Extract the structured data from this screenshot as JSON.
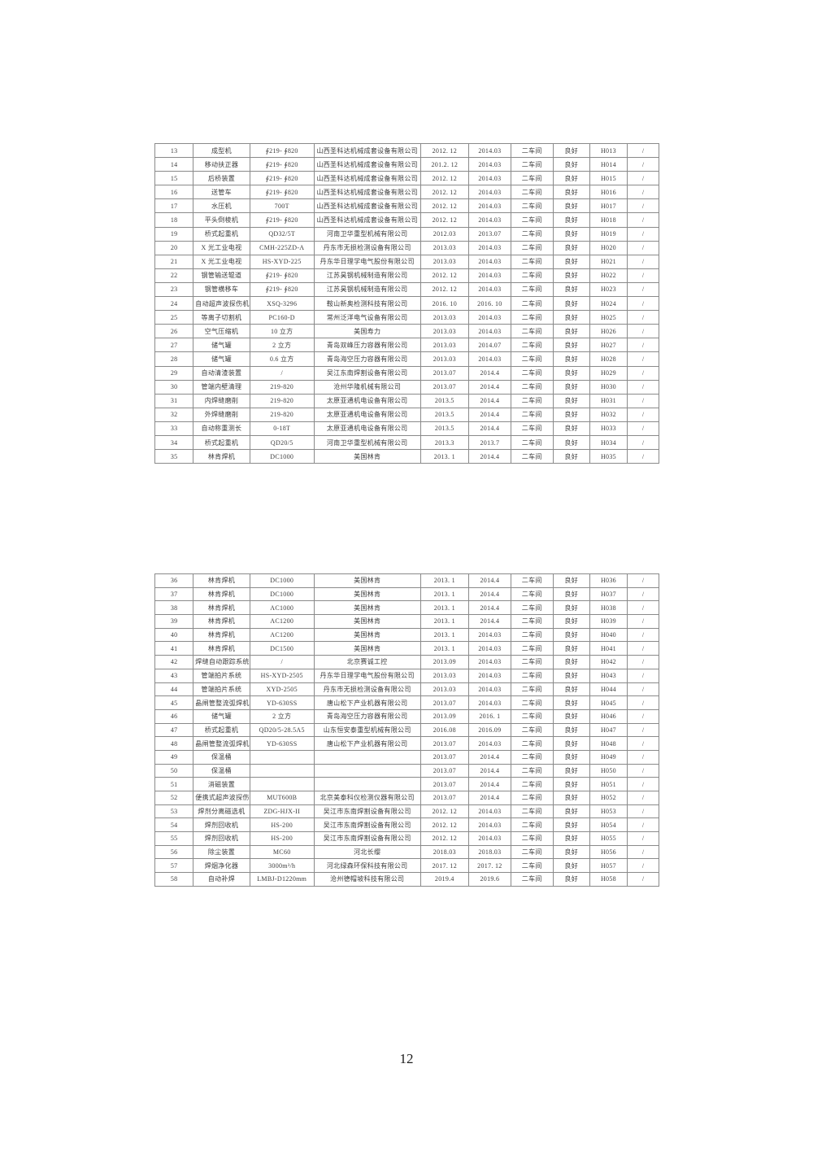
{
  "page": {
    "number": "12"
  },
  "table1": {
    "rows": [
      [
        "13",
        "成型机",
        "∮219- ∮820",
        "山西圣科达机械成套设备有限公司",
        "2012. 12",
        "2014.03",
        "二车间",
        "良好",
        "H013",
        "/"
      ],
      [
        "14",
        "移动扶正器",
        "∮219- ∮820",
        "山西圣科达机械成套设备有限公司",
        "201.2. 12",
        "2014.03",
        "二车间",
        "良好",
        "H014",
        "/"
      ],
      [
        "15",
        "后桥装置",
        "∮219- ∮820",
        "山西圣科达机械成套设备有限公司",
        "2012. 12",
        "2014.03",
        "二车间",
        "良好",
        "H015",
        "/"
      ],
      [
        "16",
        "送管车",
        "∮219- ∮820",
        "山西圣科达机械成套设备有限公司",
        "2012. 12",
        "2014.03",
        "二车间",
        "良好",
        "H016",
        "/"
      ],
      [
        "17",
        "水压机",
        "700T",
        "山西圣科达机械成套设备有限公司",
        "2012. 12",
        "2014.03",
        "二车间",
        "良好",
        "H017",
        "/"
      ],
      [
        "18",
        "平头倒棱机",
        "∮219- ∮820",
        "山西圣科达机械成套设备有限公司",
        "2012. 12",
        "2014.03",
        "二车间",
        "良好",
        "H018",
        "/"
      ],
      [
        "19",
        "桥式起重机",
        "QD32/5T",
        "河南卫华重型机械有限公司",
        "2012.03",
        "2013.07",
        "二车间",
        "良好",
        "H019",
        "/"
      ],
      [
        "20",
        "X 光工业电视",
        "CMH-225ZD-A",
        "丹东市无损检测设备有限公司",
        "2013.03",
        "2014.03",
        "二车间",
        "良好",
        "H020",
        "/"
      ],
      [
        "21",
        "X 光工业电视",
        "HS-XYD-225",
        "丹东华日理学电气股份有限公司",
        "2013.03",
        "2014.03",
        "二车间",
        "良好",
        "H021",
        "/"
      ],
      [
        "22",
        "钢管输送辊道",
        "∮219- ∮820",
        "江苏昊钢机械制造有限公司",
        "2012. 12",
        "2014.03",
        "二车间",
        "良好",
        "H022",
        "/"
      ],
      [
        "23",
        "钢管横移车",
        "∮219- ∮820",
        "江苏昊钢机械制造有限公司",
        "2012. 12",
        "2014.03",
        "二车间",
        "良好",
        "H023",
        "/"
      ],
      [
        "24",
        "自动超声波探伤机",
        "XSQ-3296",
        "鞍山新奥检测科技有限公司",
        "2016. 10",
        "2016. 10",
        "二车间",
        "良好",
        "H024",
        "/"
      ],
      [
        "25",
        "等离子切割机",
        "PC160-D",
        "常州泛洋电气设备有限公司",
        "2013.03",
        "2014.03",
        "二车间",
        "良好",
        "H025",
        "/"
      ],
      [
        "26",
        "空气压缩机",
        "10 立方",
        "美国寿力",
        "2013.03",
        "2014.03",
        "二车间",
        "良好",
        "H026",
        "/"
      ],
      [
        "27",
        "储气罐",
        "2 立方",
        "青岛双峰压力容器有限公司",
        "2013.03",
        "2014.07",
        "二车间",
        "良好",
        "H027",
        "/"
      ],
      [
        "28",
        "储气罐",
        "0.6 立方",
        "青岛海空压力容器有限公司",
        "2013.03",
        "2014.03",
        "二车间",
        "良好",
        "H028",
        "/"
      ],
      [
        "29",
        "自动清渣装置",
        "/",
        "吴江东南焊割设备有限公司",
        "2013.07",
        "2014.4",
        "二车间",
        "良好",
        "H029",
        "/"
      ],
      [
        "30",
        "管端内壁清理",
        "219-820",
        "沧州华隆机械有限公司",
        "2013.07",
        "2014.4",
        "二车间",
        "良好",
        "H030",
        "/"
      ],
      [
        "31",
        "内焊缝磨削",
        "219-820",
        "太原亚通机电设备有限公司",
        "2013.5",
        "2014.4",
        "二车间",
        "良好",
        "H031",
        "/"
      ],
      [
        "32",
        "外焊缝磨削",
        "219-820",
        "太原亚通机电设备有限公司",
        "2013.5",
        "2014.4",
        "二车间",
        "良好",
        "H032",
        "/"
      ],
      [
        "33",
        "自动称重测长",
        "0-18T",
        "太原亚通机电设备有限公司",
        "2013.5",
        "2014.4",
        "二车间",
        "良好",
        "H033",
        "/"
      ],
      [
        "34",
        "桥式起重机",
        "QD20/5",
        "河南卫华重型机械有限公司",
        "2013.3",
        "2013.7",
        "二车间",
        "良好",
        "H034",
        "/"
      ],
      [
        "35",
        "林肯焊机",
        "DC1000",
        "美国林肯",
        "2013. 1",
        "2014.4",
        "二车间",
        "良好",
        "H035",
        "/"
      ]
    ]
  },
  "table2": {
    "rows": [
      [
        "36",
        "林肯焊机",
        "DC1000",
        "美国林肯",
        "2013. 1",
        "2014.4",
        "二车间",
        "良好",
        "H036",
        "/"
      ],
      [
        "37",
        "林肯焊机",
        "DC1000",
        "美国林肯",
        "2013. 1",
        "2014.4",
        "二车间",
        "良好",
        "H037",
        "/"
      ],
      [
        "38",
        "林肯焊机",
        "AC1000",
        "美国林肯",
        "2013. 1",
        "2014.4",
        "二车间",
        "良好",
        "H038",
        "/"
      ],
      [
        "39",
        "林肯焊机",
        "AC1200",
        "美国林肯",
        "2013. 1",
        "2014.4",
        "二车间",
        "良好",
        "H039",
        "/"
      ],
      [
        "40",
        "林肯焊机",
        "AC1200",
        "美国林肯",
        "2013. 1",
        "2014.03",
        "二车间",
        "良好",
        "H040",
        "/"
      ],
      [
        "41",
        "林肯焊机",
        "DC1500",
        "美国林肯",
        "2013. 1",
        "2014.03",
        "二车间",
        "良好",
        "H041",
        "/"
      ],
      [
        "42",
        "焊缝自动跟踪系统",
        "/",
        "北京赛诚工控",
        "2013.09",
        "2014.03",
        "二车间",
        "良好",
        "H042",
        "/"
      ],
      [
        "43",
        "管端拍片系统",
        "HS-XYD-2505",
        "丹东华日理学电气股份有限公司",
        "2013.03",
        "2014.03",
        "二车间",
        "良好",
        "H043",
        "/"
      ],
      [
        "44",
        "管端拍片系统",
        "XYD-2505",
        "丹东市无损检测设备有限公司",
        "2013.03",
        "2014.03",
        "二车间",
        "良好",
        "H044",
        "/"
      ],
      [
        "45",
        "晶闸管整流弧焊机",
        "YD-630SS",
        "唐山松下产业机器有限公司",
        "2013.07",
        "2014.03",
        "二车间",
        "良好",
        "H045",
        "/"
      ],
      [
        "46",
        "储气罐",
        "2 立方",
        "青岛海空压力容器有限公司",
        "2013.09",
        "2016. 1",
        "二车间",
        "良好",
        "H046",
        "/"
      ],
      [
        "47",
        "桥式起重机",
        "QD20/5-28.5A5",
        "山东恒安泰重型机械有限公司",
        "2016.08",
        "2016.09",
        "二车间",
        "良好",
        "H047",
        "/"
      ],
      [
        "48",
        "晶闸管整流弧焊机",
        "YD-630SS",
        "唐山松下产业机器有限公司",
        "2013.07",
        "2014.03",
        "二车间",
        "良好",
        "H048",
        "/"
      ],
      [
        "49",
        "保温桶",
        "",
        "",
        "2013.07",
        "2014.4",
        "二车间",
        "良好",
        "H049",
        "/"
      ],
      [
        "50",
        "保温桶",
        "",
        "",
        "2013.07",
        "2014.4",
        "二车间",
        "良好",
        "H050",
        "/"
      ],
      [
        "51",
        "消磁装置",
        "",
        "",
        "2013.07",
        "2014.4",
        "二车间",
        "良好",
        "H051",
        "/"
      ],
      [
        "52",
        "便携式超声波探伤仪",
        "MUT600B",
        "北京美泰科仪检测仪器有限公司",
        "2013.07",
        "2014.4",
        "二车间",
        "良好",
        "H052",
        "/"
      ],
      [
        "53",
        "焊剂分离磁选机",
        "ZDG-HJX-II",
        "吴江市东南焊割设备有限公司",
        "2012. 12",
        "2014.03",
        "二车间",
        "良好",
        "H053",
        "/"
      ],
      [
        "54",
        "焊剂回收机",
        "HS-200",
        "吴江市东南焊割设备有限公司",
        "2012. 12",
        "2014.03",
        "二车间",
        "良好",
        "H054",
        "/"
      ],
      [
        "55",
        "焊剂回收机",
        "HS-200",
        "吴江市东南焊割设备有限公司",
        "2012. 12",
        "2014.03",
        "二车间",
        "良好",
        "H055",
        "/"
      ],
      [
        "56",
        "除尘装置",
        "MC60",
        "河北长缨",
        "2018.03",
        "2018.03",
        "二车间",
        "良好",
        "H056",
        "/"
      ],
      [
        "57",
        "焊烟净化器",
        "3000m³/h",
        "河北绿森环保科技有限公司",
        "2017. 12",
        "2017. 12",
        "二车间",
        "良好",
        "H057",
        "/"
      ],
      [
        "58",
        "自动补焊",
        "LMBJ-D1220mm",
        "沧州德帽坡科技有限公司",
        "2019.4",
        "2019.6",
        "二车间",
        "良好",
        "H058",
        "/"
      ]
    ]
  }
}
